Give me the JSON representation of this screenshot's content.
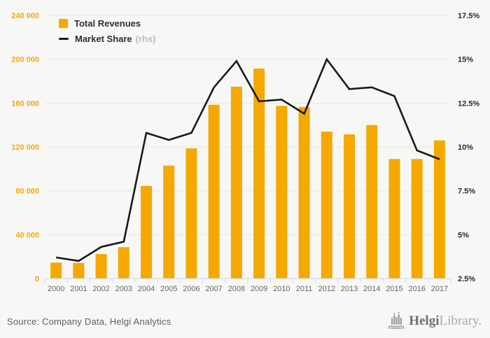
{
  "legend": {
    "revenues_label": "Total Revenues",
    "market_share_label": "Market Share",
    "market_share_suffix": "(rhs)"
  },
  "footer": {
    "source": "Source: Company Data, Helgi Analytics",
    "logo_bold": "Helgi",
    "logo_light": "Library."
  },
  "chart_data": {
    "type": "bar",
    "title": "",
    "categories": [
      "2000",
      "2001",
      "2002",
      "2003",
      "2004",
      "2005",
      "2006",
      "2007",
      "2008",
      "2009",
      "2010",
      "2011",
      "2012",
      "2013",
      "2014",
      "2015",
      "2016",
      "2017"
    ],
    "series": [
      {
        "name": "Total Revenues",
        "type": "bar",
        "axis": "left",
        "color": "#F5A800",
        "values": [
          14500,
          14200,
          22300,
          28600,
          84500,
          103000,
          118700,
          158500,
          175000,
          191500,
          157500,
          156500,
          134000,
          131500,
          140000,
          109000,
          109000,
          126000
        ]
      },
      {
        "name": "Market Share (rhs)",
        "type": "line",
        "axis": "right",
        "color": "#1a1a1a",
        "values": [
          3.7,
          3.5,
          4.3,
          4.6,
          10.8,
          10.4,
          10.8,
          13.4,
          14.9,
          12.6,
          12.7,
          11.9,
          15.0,
          13.3,
          13.4,
          12.9,
          9.8,
          9.3
        ]
      }
    ],
    "left_axis": {
      "min": 0,
      "max": 240000,
      "tick_values": [
        0,
        40000,
        80000,
        120000,
        160000,
        200000,
        240000
      ],
      "tick_labels": [
        "0",
        "40 000",
        "80 000",
        "120 000",
        "160 000",
        "200 000",
        "240 000"
      ]
    },
    "right_axis": {
      "min": 2.5,
      "max": 17.5,
      "tick_values": [
        2.5,
        5,
        7.5,
        10,
        12.5,
        15,
        17.5
      ],
      "tick_labels": [
        "2.5%",
        "5%",
        "7.5%",
        "10%",
        "12.5%",
        "15%",
        "17.5%"
      ]
    },
    "grid": true,
    "legend_position": "top-left",
    "colors": {
      "bar": "#F5A800",
      "line": "#1a1a1a",
      "grid": "#e7e7e5",
      "axis": "#ccd6eb",
      "left_labels": "#F5A800",
      "right_labels": "#2b2b2b",
      "x_labels": "#666666"
    }
  }
}
